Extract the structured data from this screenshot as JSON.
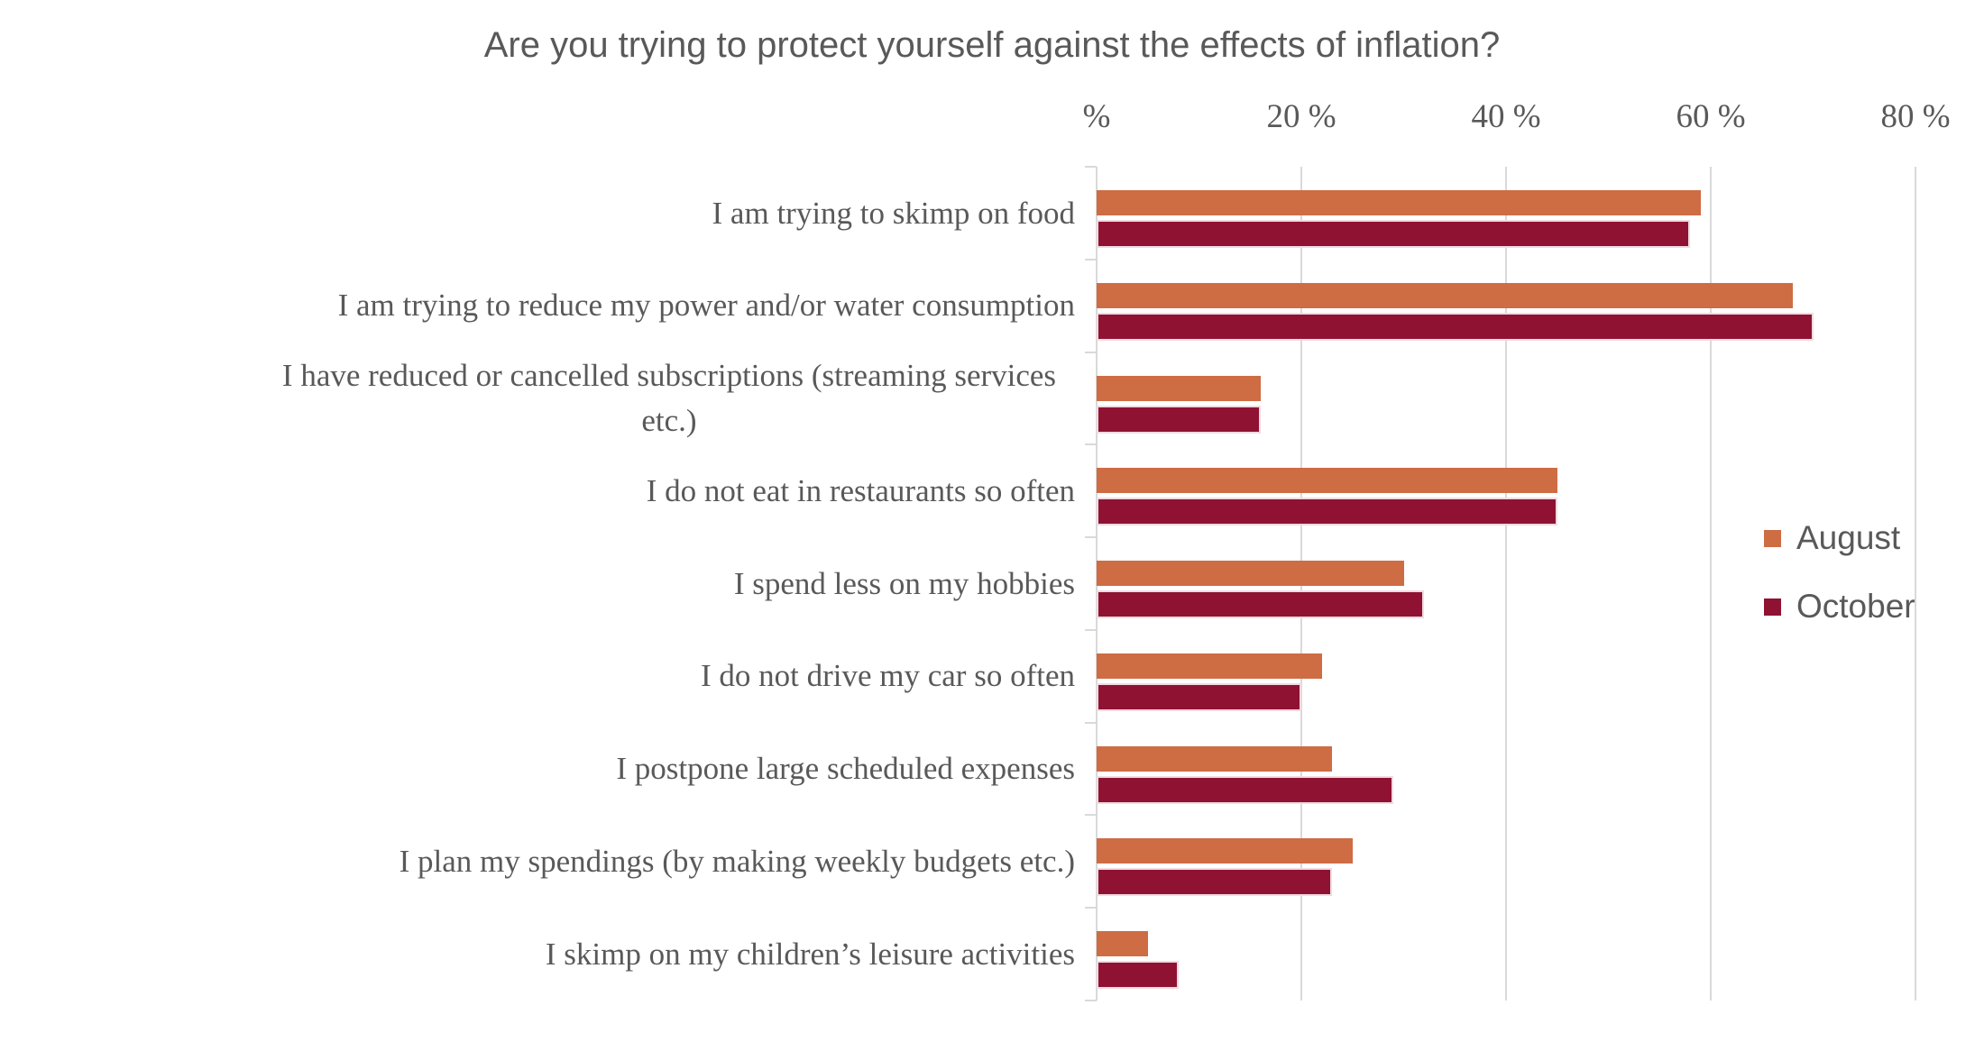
{
  "title": "Are you trying to protect yourself against the effects of inflation?",
  "colors": {
    "august": "#CE6C44",
    "october": "#8F1233",
    "october_outline": "#F0DBE0",
    "text": "#595959",
    "grid": "#D9D9D9"
  },
  "x_axis": {
    "tick_labels": [
      "%",
      "20 %",
      "40 %",
      "60 %",
      "80 %"
    ],
    "tick_values": [
      0,
      20,
      40,
      60,
      80
    ],
    "max": 80
  },
  "legend": [
    {
      "label": "August",
      "color": "#CE6C44"
    },
    {
      "label": "October",
      "color": "#8F1233"
    }
  ],
  "chart_data": {
    "type": "bar",
    "orientation": "horizontal",
    "title": "Are you trying to protect yourself against the effects of inflation?",
    "categories": [
      "I am trying to skimp on food",
      "I am trying to reduce my power and/or water consumption",
      "I have reduced or cancelled subscriptions (streaming services etc.)",
      "I do not eat in restaurants so often",
      "I spend less on my hobbies",
      "I do not drive my car so often",
      "I postpone large scheduled expenses",
      "I plan my spendings (by making weekly budgets etc.)",
      "I skimp on my children’s leisure activities"
    ],
    "series": [
      {
        "name": "August",
        "color": "#CE6C44",
        "values": [
          59,
          68,
          16,
          45,
          30,
          22,
          23,
          25,
          5
        ]
      },
      {
        "name": "October",
        "color": "#8F1233",
        "values": [
          58,
          70,
          16,
          45,
          32,
          20,
          29,
          23,
          8
        ]
      }
    ],
    "xlabel": "%",
    "xlim": [
      0,
      80
    ],
    "grid": true,
    "legend_position": "right"
  }
}
